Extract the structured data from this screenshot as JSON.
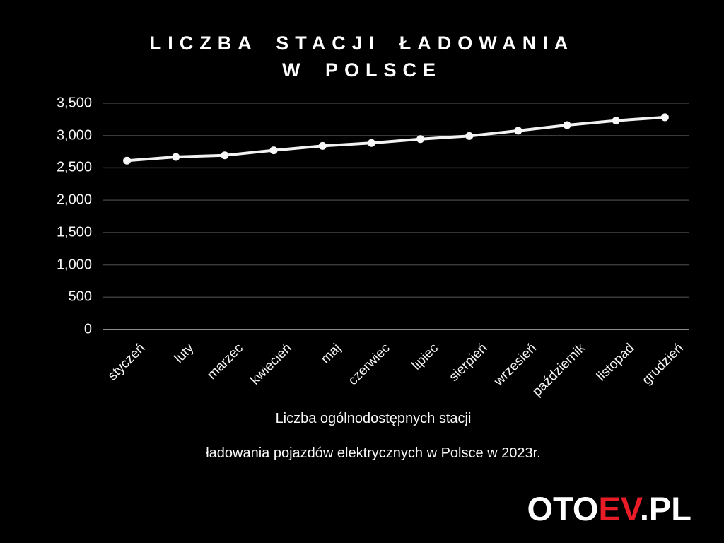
{
  "title": {
    "line1": "LICZBA STACJI ŁADOWANIA",
    "line2": "W POLSCE"
  },
  "chart_data": {
    "type": "line",
    "title": "LICZBA STACJI ŁADOWANIA W POLSCE",
    "categories": [
      "styczeń",
      "luty",
      "marzec",
      "kwiecień",
      "maj",
      "czerwiec",
      "lipiec",
      "sierpień",
      "wrzesień",
      "październik",
      "listopad",
      "grudzień"
    ],
    "series": [
      {
        "name": "Liczba ogólnodostępnych stacji ładowania pojazdów elektrycznych w Polsce w 2023r.",
        "values": [
          2611,
          2669,
          2694,
          2771,
          2840,
          2885,
          2945,
          2993,
          3075,
          3161,
          3231,
          3282
        ]
      }
    ],
    "xlabel": "",
    "ylabel": "",
    "ylim": [
      0,
      3500
    ],
    "y_tick_values": [
      0,
      500,
      1000,
      1500,
      2000,
      2500,
      3000,
      3500
    ],
    "y_tick_labels": [
      "0",
      "500",
      "1,000",
      "1,500",
      "2,000",
      "2,500",
      "3,000",
      "3,500"
    ],
    "grid": true,
    "legend": "none",
    "colors": {
      "background": "#000000",
      "line": "#f2f2f2",
      "marker": "#f7f7f7",
      "gridline": "#3b3b3b",
      "axis_line": "#8d8d8d",
      "tick_text": "#f5f5f5"
    }
  },
  "caption": {
    "line1": "Liczba ogólnodostępnych stacji",
    "line2": "ładowania pojazdów elektrycznych w Polsce w 2023r."
  },
  "logo": {
    "part1": "OTO",
    "part2": "EV",
    "part3": ".PL",
    "accent_color": "#e81c26"
  }
}
